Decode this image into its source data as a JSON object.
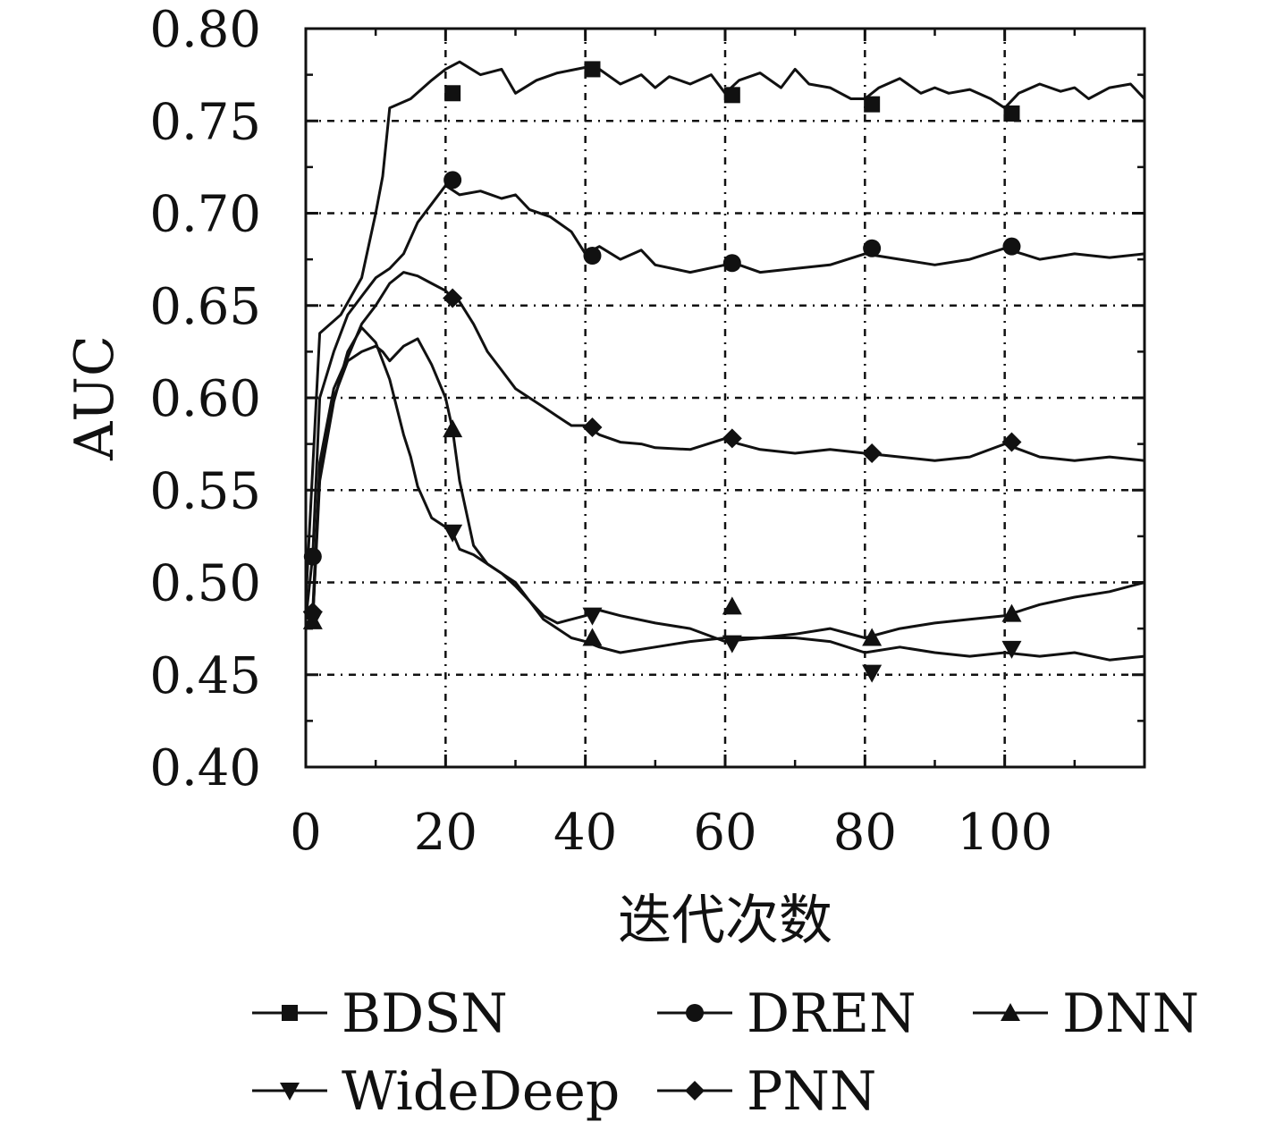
{
  "chart_data": {
    "type": "line",
    "title": "",
    "xlabel": "迭代次数",
    "ylabel": "AUC",
    "xlim": [
      0,
      120
    ],
    "ylim": [
      0.4,
      0.8
    ],
    "x_ticks": [
      0,
      20,
      40,
      60,
      80,
      100
    ],
    "x_tick_labels": [
      "0",
      "20",
      "40",
      "60",
      "80",
      "100"
    ],
    "y_ticks": [
      0.4,
      0.45,
      0.5,
      0.55,
      0.6,
      0.65,
      0.7,
      0.75,
      0.8
    ],
    "y_tick_labels": [
      "0.40",
      "0.45",
      "0.50",
      "0.55",
      "0.60",
      "0.65",
      "0.70",
      "0.75",
      "0.80"
    ],
    "grid": {
      "x": true,
      "y": true,
      "style": "dash-dot"
    },
    "legend": {
      "placement": "bottom",
      "columns": 3
    },
    "series": [
      {
        "name": "BDSN",
        "marker": "square",
        "x": [
          0,
          2,
          5,
          8,
          10,
          11,
          12,
          15,
          18,
          20,
          22,
          25,
          28,
          30,
          33,
          36,
          40,
          42,
          45,
          48,
          50,
          52,
          55,
          58,
          60,
          62,
          65,
          68,
          70,
          72,
          75,
          78,
          80,
          82,
          85,
          88,
          90,
          92,
          95,
          98,
          100,
          102,
          105,
          108,
          110,
          112,
          115,
          118,
          120
        ],
        "values": [
          0.49,
          0.635,
          0.645,
          0.665,
          0.7,
          0.72,
          0.757,
          0.762,
          0.772,
          0.778,
          0.782,
          0.775,
          0.778,
          0.765,
          0.772,
          0.776,
          0.779,
          0.778,
          0.77,
          0.775,
          0.768,
          0.774,
          0.77,
          0.775,
          0.765,
          0.772,
          0.776,
          0.768,
          0.778,
          0.77,
          0.768,
          0.762,
          0.762,
          0.768,
          0.773,
          0.765,
          0.768,
          0.765,
          0.767,
          0.762,
          0.757,
          0.765,
          0.77,
          0.766,
          0.768,
          0.762,
          0.768,
          0.77,
          0.762
        ],
        "marker_x": [
          21,
          41,
          61,
          81,
          101
        ],
        "marker_values": [
          0.765,
          0.778,
          0.764,
          0.759,
          0.754
        ]
      },
      {
        "name": "DREN",
        "marker": "circle",
        "x": [
          0,
          1,
          2,
          4,
          6,
          8,
          10,
          12,
          14,
          16,
          18,
          20,
          22,
          25,
          28,
          30,
          32,
          35,
          38,
          40,
          42,
          45,
          48,
          50,
          55,
          60,
          62,
          65,
          70,
          75,
          80,
          85,
          90,
          95,
          100,
          105,
          110,
          115,
          120
        ],
        "values": [
          0.48,
          0.515,
          0.6,
          0.625,
          0.645,
          0.655,
          0.665,
          0.67,
          0.678,
          0.695,
          0.705,
          0.715,
          0.71,
          0.712,
          0.708,
          0.71,
          0.702,
          0.698,
          0.69,
          0.678,
          0.682,
          0.675,
          0.68,
          0.672,
          0.668,
          0.672,
          0.672,
          0.668,
          0.67,
          0.672,
          0.678,
          0.675,
          0.672,
          0.675,
          0.681,
          0.675,
          0.678,
          0.676,
          0.678
        ],
        "marker_x": [
          1,
          21,
          41,
          61,
          81,
          101
        ],
        "marker_values": [
          0.514,
          0.718,
          0.677,
          0.673,
          0.681,
          0.682
        ]
      },
      {
        "name": "DNN",
        "marker": "triangle-up",
        "x": [
          0,
          1,
          2,
          4,
          6,
          8,
          10,
          11,
          12,
          14,
          16,
          18,
          20,
          21,
          22,
          24,
          26,
          28,
          30,
          32,
          34,
          36,
          38,
          40,
          42,
          45,
          50,
          55,
          60,
          65,
          70,
          75,
          80,
          85,
          90,
          95,
          100,
          105,
          110,
          115,
          120
        ],
        "values": [
          0.478,
          0.48,
          0.56,
          0.6,
          0.62,
          0.625,
          0.628,
          0.625,
          0.62,
          0.628,
          0.632,
          0.618,
          0.6,
          0.583,
          0.555,
          0.52,
          0.51,
          0.505,
          0.5,
          0.49,
          0.48,
          0.475,
          0.47,
          0.468,
          0.465,
          0.462,
          0.465,
          0.468,
          0.47,
          0.47,
          0.472,
          0.475,
          0.47,
          0.475,
          0.478,
          0.48,
          0.482,
          0.488,
          0.492,
          0.495,
          0.5
        ],
        "marker_x": [
          1,
          21,
          41,
          61,
          81,
          101
        ],
        "marker_values": [
          0.479,
          0.583,
          0.47,
          0.487,
          0.47,
          0.483
        ]
      },
      {
        "name": "WideDeep",
        "marker": "triangle-down",
        "x": [
          0,
          1,
          2,
          4,
          6,
          8,
          10,
          12,
          14,
          15,
          16,
          18,
          20,
          21,
          22,
          24,
          26,
          28,
          30,
          32,
          34,
          36,
          38,
          40,
          42,
          45,
          50,
          55,
          60,
          65,
          70,
          75,
          80,
          85,
          90,
          95,
          100,
          105,
          110,
          115,
          120
        ],
        "values": [
          0.478,
          0.48,
          0.555,
          0.598,
          0.625,
          0.638,
          0.63,
          0.61,
          0.58,
          0.568,
          0.552,
          0.535,
          0.53,
          0.527,
          0.518,
          0.515,
          0.51,
          0.505,
          0.498,
          0.49,
          0.482,
          0.478,
          0.48,
          0.482,
          0.485,
          0.482,
          0.478,
          0.475,
          0.468,
          0.47,
          0.47,
          0.468,
          0.462,
          0.465,
          0.462,
          0.46,
          0.462,
          0.46,
          0.462,
          0.458,
          0.46
        ],
        "marker_x": [
          1,
          21,
          41,
          61,
          81,
          101
        ],
        "marker_values": [
          0.48,
          0.527,
          0.482,
          0.467,
          0.451,
          0.464
        ]
      },
      {
        "name": "PNN",
        "marker": "diamond",
        "x": [
          0,
          1,
          2,
          4,
          6,
          8,
          10,
          12,
          14,
          16,
          18,
          20,
          21,
          22,
          24,
          26,
          28,
          30,
          32,
          34,
          36,
          38,
          40,
          42,
          45,
          48,
          50,
          55,
          60,
          62,
          65,
          70,
          75,
          80,
          85,
          90,
          95,
          100,
          105,
          110,
          115,
          120
        ],
        "values": [
          0.48,
          0.485,
          0.565,
          0.605,
          0.622,
          0.64,
          0.65,
          0.662,
          0.668,
          0.666,
          0.662,
          0.658,
          0.654,
          0.652,
          0.64,
          0.625,
          0.615,
          0.605,
          0.6,
          0.595,
          0.59,
          0.585,
          0.585,
          0.58,
          0.576,
          0.575,
          0.573,
          0.572,
          0.578,
          0.575,
          0.572,
          0.57,
          0.572,
          0.57,
          0.568,
          0.566,
          0.568,
          0.575,
          0.568,
          0.566,
          0.568,
          0.566
        ],
        "marker_x": [
          1,
          21,
          41,
          61,
          81,
          101
        ],
        "marker_values": [
          0.484,
          0.654,
          0.584,
          0.578,
          0.57,
          0.576
        ]
      }
    ]
  }
}
